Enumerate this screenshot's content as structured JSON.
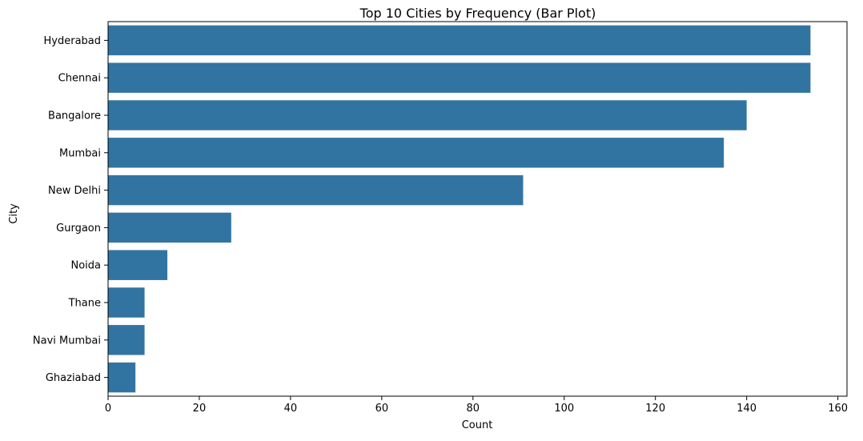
{
  "chart_data": {
    "type": "bar",
    "orientation": "horizontal",
    "title": "Top 10 Cities by Frequency (Bar Plot)",
    "xlabel": "Count",
    "ylabel": "City",
    "categories": [
      "Hyderabad",
      "Chennai",
      "Bangalore",
      "Mumbai",
      "New Delhi",
      "Gurgaon",
      "Noida",
      "Thane",
      "Navi Mumbai",
      "Ghaziabad"
    ],
    "values": [
      154,
      154,
      140,
      135,
      91,
      27,
      13,
      8,
      8,
      6
    ],
    "xlim": [
      0,
      162
    ],
    "xticks": [
      0,
      20,
      40,
      60,
      80,
      100,
      120,
      140,
      160
    ],
    "grid": false,
    "legend": "none",
    "bar_color": "#3274a1"
  }
}
